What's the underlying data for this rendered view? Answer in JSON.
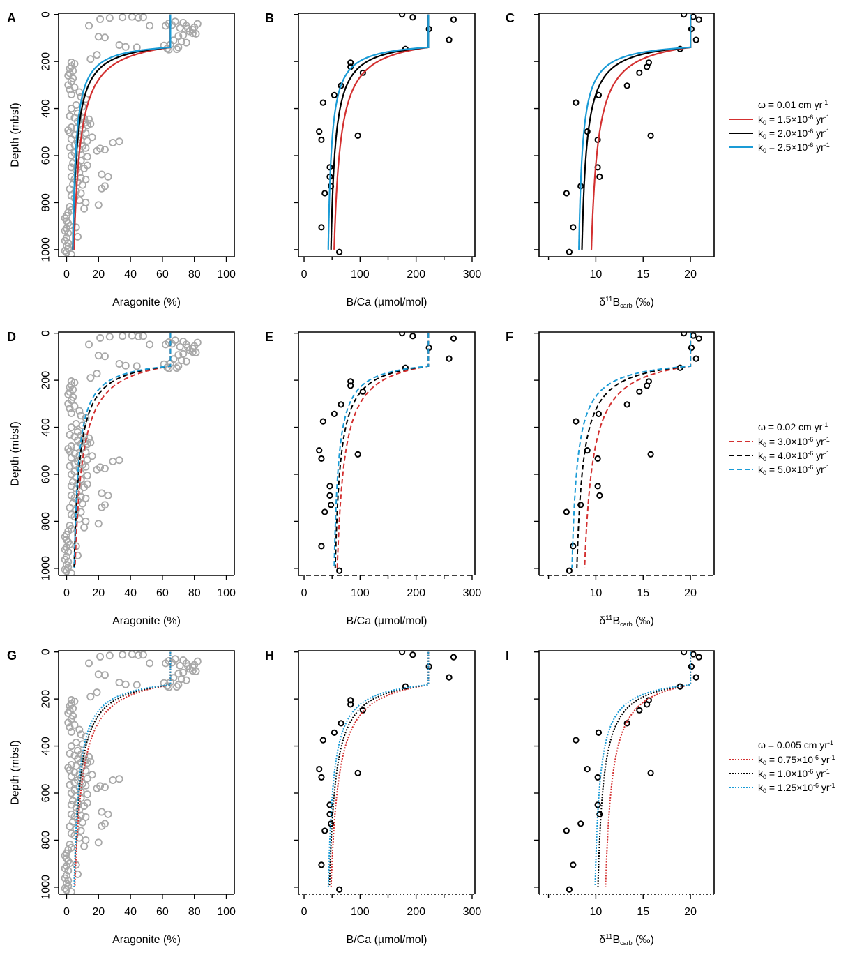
{
  "ylabel": "Depth (mbsf)",
  "xlabels": {
    "aragonite": "Aragonite (%)",
    "bca": "B/Ca (µmol/mol)",
    "d11b_prefix": "δ",
    "d11b_sup": "11",
    "d11b_base": "B",
    "d11b_sub": "carb",
    "d11b_suffix": " (‰)"
  },
  "colors": {
    "red": "#d33030",
    "black": "#000000",
    "blue": "#1a9bd6",
    "gray": "#a8a8a8"
  },
  "panels_letters": [
    "A",
    "B",
    "C",
    "D",
    "E",
    "F",
    "G",
    "H",
    "I"
  ],
  "legends": [
    {
      "omega": "ω = 0.01 cm yr",
      "style": "solid",
      "items": [
        {
          "k0": "1.5×10",
          "color": "red"
        },
        {
          "k0": "2.0×10",
          "color": "black"
        },
        {
          "k0": "2.5×10",
          "color": "blue"
        }
      ]
    },
    {
      "omega": "ω = 0.02 cm yr",
      "style": "dashed",
      "items": [
        {
          "k0": "3.0×10",
          "color": "red"
        },
        {
          "k0": "4.0×10",
          "color": "black"
        },
        {
          "k0": "5.0×10",
          "color": "blue"
        }
      ]
    },
    {
      "omega": "ω = 0.005 cm yr",
      "style": "dotted",
      "items": [
        {
          "k0": "0.75×10",
          "color": "red"
        },
        {
          "k0": "1.0×10",
          "color": "black"
        },
        {
          "k0": "1.25×10",
          "color": "blue"
        }
      ]
    }
  ],
  "legend_tokens": {
    "k": "k",
    "k_sub": "0",
    "eq": " = ",
    "exp": "-6",
    "unit": " yr",
    "unit_sup": "-1"
  },
  "chart_data": {
    "type": "scatter",
    "description_note": "3x3 grid of depth profiles with model curves",
    "ylim": [
      1030,
      -5
    ],
    "yticks": [
      0,
      200,
      400,
      600,
      800,
      1000
    ],
    "axes": {
      "aragonite": {
        "xlim": [
          -5,
          105
        ],
        "xticks": [
          0,
          20,
          40,
          60,
          80,
          100
        ]
      },
      "bca": {
        "xlim": [
          -10,
          305
        ],
        "xticks": [
          0,
          100,
          200,
          300
        ],
        "minor_xticks": [
          50,
          150,
          250
        ]
      },
      "d11b": {
        "xlim": [
          4,
          22.5
        ],
        "xticks": [
          10,
          15,
          20
        ],
        "minor_xticks": [
          5
        ]
      }
    },
    "aragonite_points": [
      [
        14,
        48
      ],
      [
        21,
        20
      ],
      [
        27,
        15
      ],
      [
        35,
        12
      ],
      [
        41,
        10
      ],
      [
        45,
        14
      ],
      [
        48,
        12
      ],
      [
        52,
        48
      ],
      [
        20,
        95
      ],
      [
        24,
        98
      ],
      [
        33,
        130
      ],
      [
        37,
        138
      ],
      [
        44,
        140
      ],
      [
        64,
        38
      ],
      [
        62,
        48
      ],
      [
        68,
        30
      ],
      [
        66,
        45
      ],
      [
        71,
        58
      ],
      [
        73,
        35
      ],
      [
        75,
        48
      ],
      [
        76,
        60
      ],
      [
        77,
        72
      ],
      [
        79,
        65
      ],
      [
        80,
        55
      ],
      [
        82,
        40
      ],
      [
        79,
        80
      ],
      [
        81,
        82
      ],
      [
        73,
        88
      ],
      [
        70,
        92
      ],
      [
        67,
        110
      ],
      [
        72,
        115
      ],
      [
        75,
        120
      ],
      [
        65,
        128
      ],
      [
        70,
        140
      ],
      [
        69,
        148
      ],
      [
        63,
        145
      ],
      [
        64,
        150
      ],
      [
        61,
        132
      ],
      [
        19,
        172
      ],
      [
        15,
        190
      ],
      [
        3,
        204
      ],
      [
        5,
        210
      ],
      [
        3,
        220
      ],
      [
        2,
        230
      ],
      [
        4,
        240
      ],
      [
        2,
        250
      ],
      [
        1,
        260
      ],
      [
        4,
        272
      ],
      [
        3,
        285
      ],
      [
        1,
        300
      ],
      [
        2,
        320
      ],
      [
        5,
        310
      ],
      [
        8,
        330
      ],
      [
        3,
        340
      ],
      [
        9,
        350
      ],
      [
        12,
        360
      ],
      [
        6,
        385
      ],
      [
        10,
        392
      ],
      [
        3,
        400
      ],
      [
        7,
        420
      ],
      [
        2,
        432
      ],
      [
        5,
        440
      ],
      [
        9,
        435
      ],
      [
        11,
        442
      ],
      [
        14,
        446
      ],
      [
        7,
        455
      ],
      [
        12,
        460
      ],
      [
        15,
        465
      ],
      [
        9,
        470
      ],
      [
        13,
        472
      ],
      [
        3,
        480
      ],
      [
        6,
        485
      ],
      [
        10,
        488
      ],
      [
        1,
        492
      ],
      [
        2,
        502
      ],
      [
        12,
        505
      ],
      [
        5,
        512
      ],
      [
        8,
        520
      ],
      [
        16,
        522
      ],
      [
        3,
        530
      ],
      [
        9,
        535
      ],
      [
        13,
        538
      ],
      [
        7,
        545
      ],
      [
        33,
        540
      ],
      [
        29,
        545
      ],
      [
        5,
        556
      ],
      [
        10,
        560
      ],
      [
        2,
        565
      ],
      [
        12,
        568
      ],
      [
        8,
        575
      ],
      [
        21,
        570
      ],
      [
        24,
        575
      ],
      [
        19,
        580
      ],
      [
        5,
        588
      ],
      [
        9,
        595
      ],
      [
        3,
        600
      ],
      [
        13,
        605
      ],
      [
        6,
        612
      ],
      [
        9,
        622
      ],
      [
        4,
        632
      ],
      [
        7,
        640
      ],
      [
        13,
        642
      ],
      [
        3,
        650
      ],
      [
        11,
        655
      ],
      [
        6,
        662
      ],
      [
        8,
        672
      ],
      [
        22,
        680
      ],
      [
        26,
        690
      ],
      [
        3,
        690
      ],
      [
        9,
        695
      ],
      [
        5,
        700
      ],
      [
        12,
        702
      ],
      [
        7,
        712
      ],
      [
        4,
        722
      ],
      [
        10,
        725
      ],
      [
        24,
        730
      ],
      [
        22,
        740
      ],
      [
        2,
        742
      ],
      [
        6,
        752
      ],
      [
        9,
        760
      ],
      [
        3,
        772
      ],
      [
        5,
        780
      ],
      [
        8,
        790
      ],
      [
        12,
        800
      ],
      [
        20,
        810
      ],
      [
        2,
        818
      ],
      [
        11,
        826
      ],
      [
        3,
        832
      ],
      [
        1,
        842
      ],
      [
        0,
        856
      ],
      [
        -1,
        866
      ],
      [
        0,
        878
      ],
      [
        1,
        888
      ],
      [
        2,
        898
      ],
      [
        6,
        905
      ],
      [
        0,
        910
      ],
      [
        -1,
        920
      ],
      [
        1,
        930
      ],
      [
        7,
        945
      ],
      [
        0,
        950
      ],
      [
        -1,
        962
      ],
      [
        1,
        972
      ],
      [
        0,
        984
      ],
      [
        1,
        995
      ],
      [
        -1,
        1005
      ],
      [
        0,
        1012
      ],
      [
        3,
        1020
      ]
    ],
    "bca_points": [
      [
        175,
        0
      ],
      [
        194,
        12
      ],
      [
        267,
        22
      ],
      [
        223,
        62
      ],
      [
        259,
        108
      ],
      [
        181,
        147
      ],
      [
        83,
        205
      ],
      [
        83,
        223
      ],
      [
        105,
        248
      ],
      [
        66,
        303
      ],
      [
        54,
        343
      ],
      [
        34,
        375
      ],
      [
        27,
        498
      ],
      [
        96,
        515
      ],
      [
        31,
        533
      ],
      [
        46,
        650
      ],
      [
        46,
        690
      ],
      [
        48,
        730
      ],
      [
        37,
        760
      ],
      [
        31,
        905
      ],
      [
        63,
        1010
      ]
    ],
    "d11b_points": [
      [
        19.3,
        0
      ],
      [
        20.3,
        10
      ],
      [
        20.9,
        22
      ],
      [
        20.1,
        62
      ],
      [
        20.6,
        108
      ],
      [
        18.9,
        147
      ],
      [
        15.6,
        205
      ],
      [
        15.4,
        223
      ],
      [
        14.6,
        248
      ],
      [
        13.3,
        303
      ],
      [
        10.3,
        343
      ],
      [
        7.9,
        375
      ],
      [
        9.1,
        498
      ],
      [
        15.8,
        515
      ],
      [
        10.2,
        533
      ],
      [
        10.2,
        650
      ],
      [
        10.4,
        690
      ],
      [
        8.4,
        730
      ],
      [
        6.9,
        760
      ],
      [
        7.6,
        905
      ],
      [
        7.2,
        1010
      ]
    ],
    "surface_depth": 140,
    "model_curves": {
      "aragonite": {
        "surface": 65,
        "deep": [
          [
            0.4,
            1.0,
            1.8
          ],
          [
            0.4,
            1.2,
            2.0
          ],
          [
            0.3,
            0.9,
            1.6
          ]
        ]
      },
      "bca": {
        "surface": 222,
        "deep": [
          [
            42,
            40,
            37
          ],
          [
            46,
            46,
            46
          ],
          [
            34,
            34,
            34
          ]
        ]
      },
      "d11b": {
        "surface": 20,
        "deep": [
          [
            8.8,
            8.0,
            7.8
          ],
          [
            7.9,
            7.3,
            6.9
          ],
          [
            10.3,
            9.6,
            9.4
          ]
        ]
      },
      "decay_scale": [
        [
          60,
          40,
          30
        ],
        [
          70,
          50,
          40
        ],
        [
          70,
          55,
          45
        ]
      ]
    }
  }
}
